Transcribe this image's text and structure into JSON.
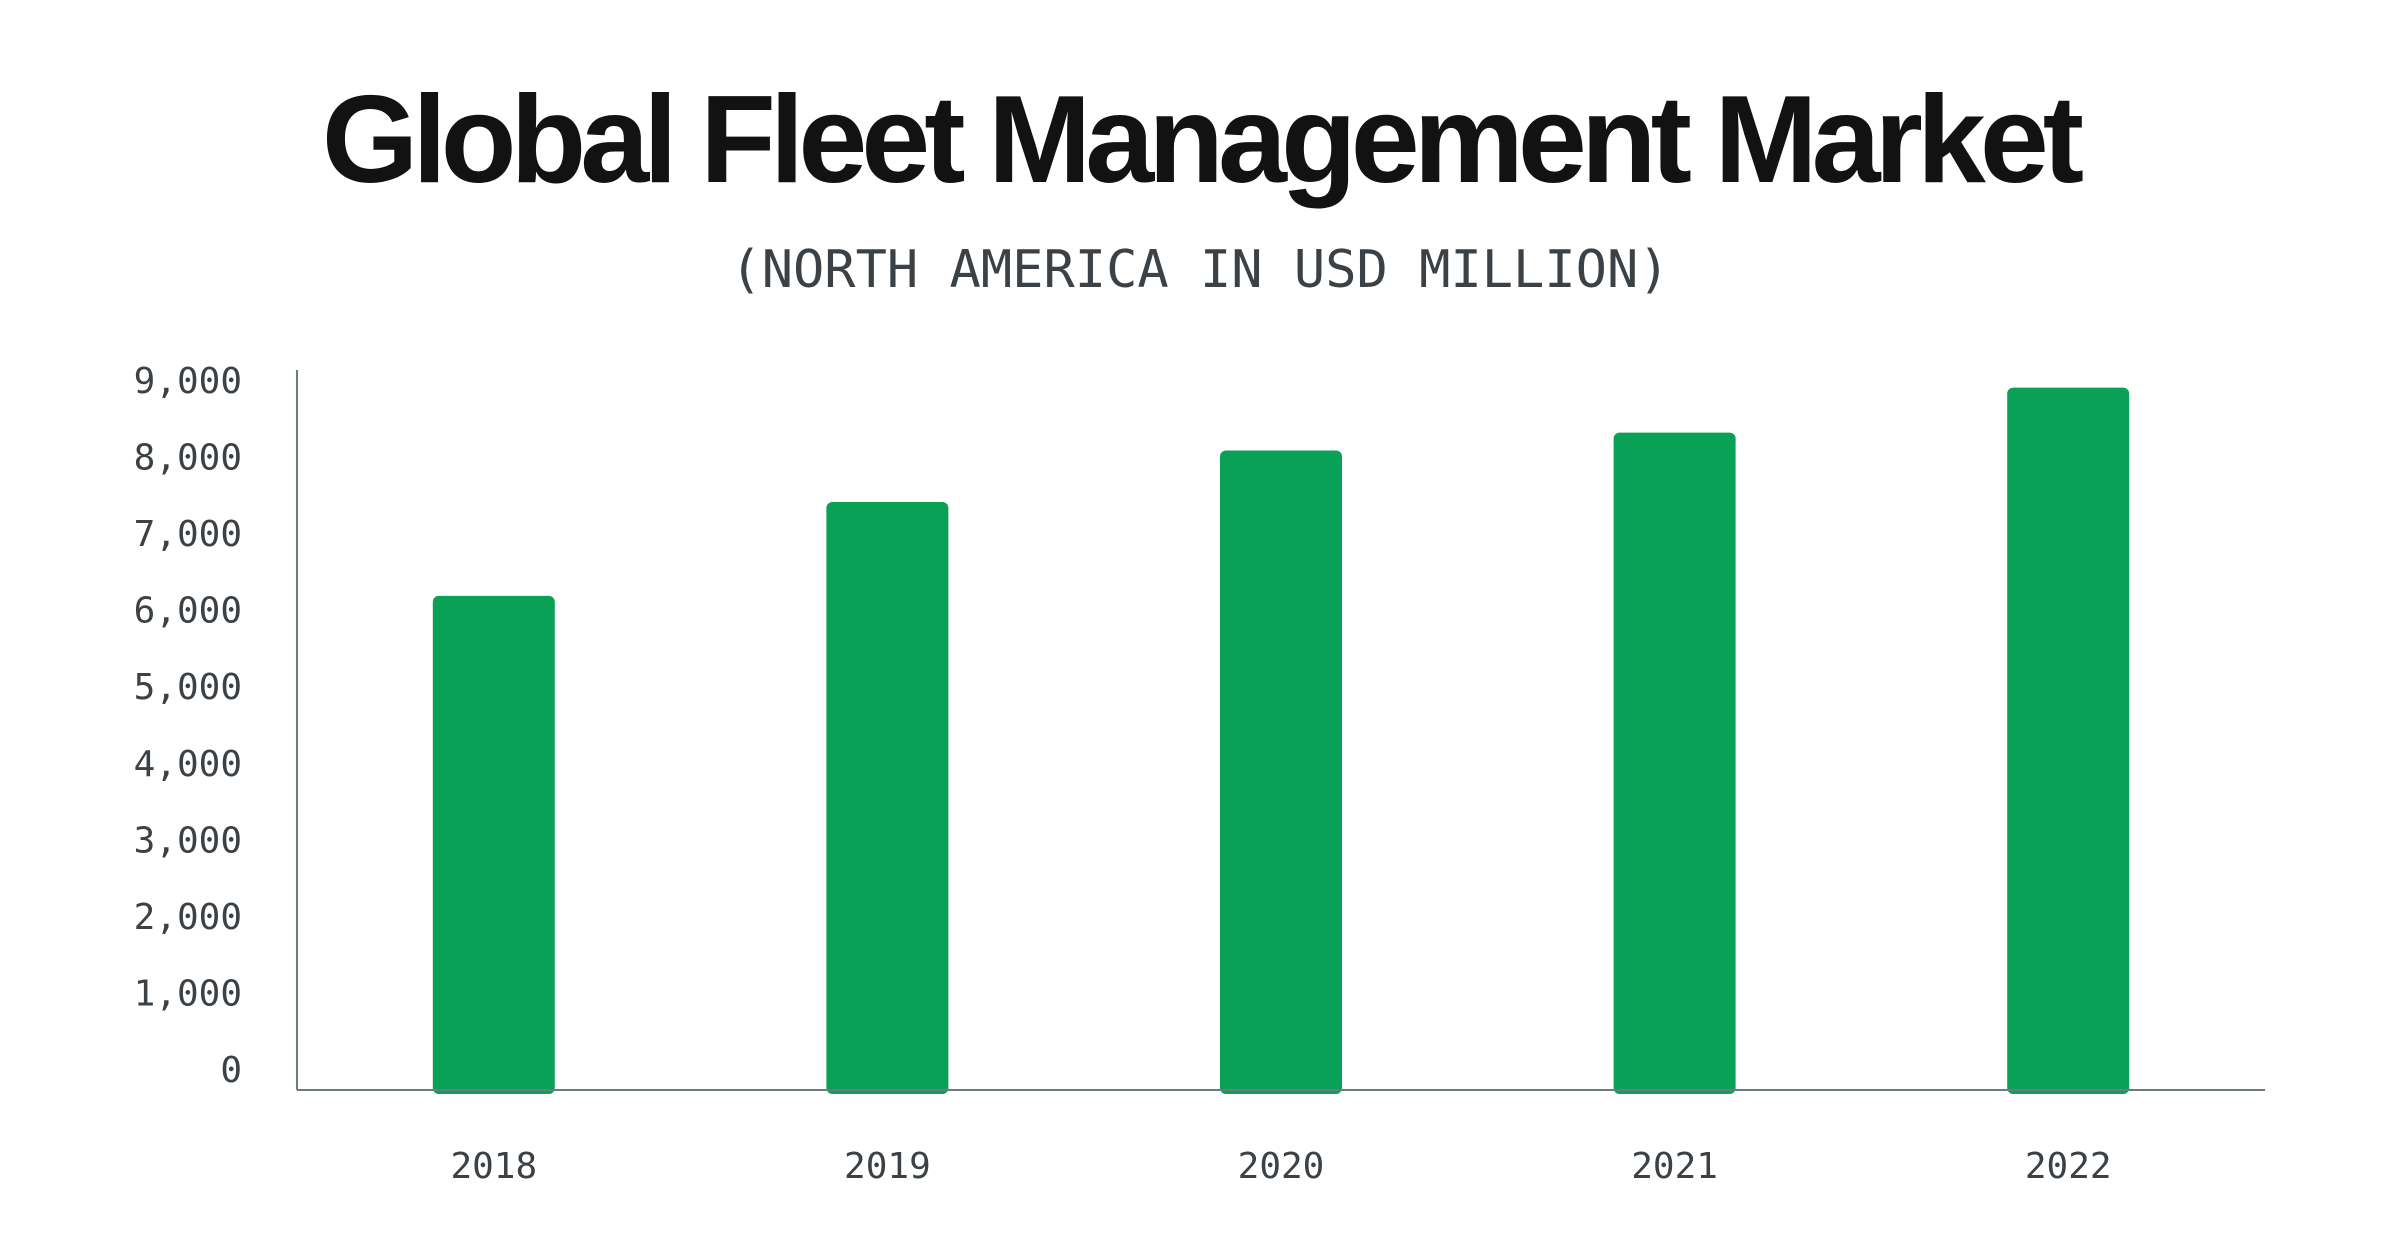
{
  "chart_data": {
    "type": "bar",
    "title": "Global Fleet Management Market",
    "subtitle": "(NORTH AMERICA IN USD MILLION)",
    "xlabel": "",
    "ylabel": "",
    "categories": [
      "2018",
      "2019",
      "2020",
      "2021",
      "2022"
    ],
    "values": [
      6050,
      7200,
      7830,
      8050,
      8600
    ],
    "ylim": [
      0,
      9000
    ],
    "yticks": [
      0,
      1000,
      2000,
      3000,
      4000,
      5000,
      6000,
      7000,
      8000,
      9000
    ],
    "ytick_labels": [
      "0",
      "1,000",
      "2,000",
      "3,000",
      "4,000",
      "5,000",
      "6,000",
      "7,000",
      "8,000",
      "9,000"
    ],
    "grid": false,
    "legend": "none",
    "colors": {
      "bar": "#09a155",
      "axis": "#6b7c80",
      "title": "#121212",
      "text": "#3b4145",
      "background": "#ffffff"
    }
  }
}
